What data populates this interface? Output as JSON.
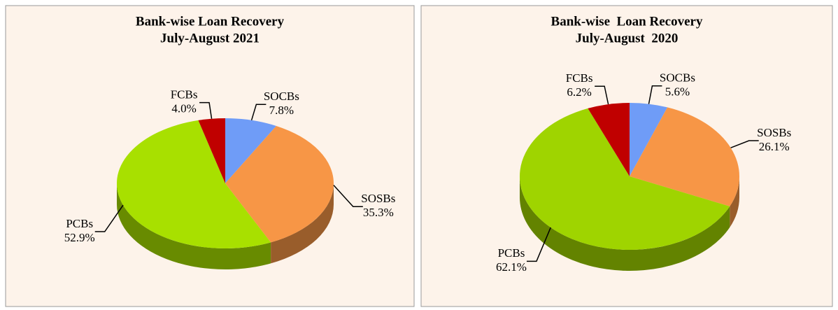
{
  "chart_data": [
    {
      "type": "pie",
      "title": "Bank-wise Loan Recovery",
      "subtitle": "July-August 2021",
      "labels": [
        "SOCBs",
        "SOSBs",
        "PCBs",
        "FCBs"
      ],
      "values": [
        7.8,
        35.3,
        52.9,
        4.0
      ],
      "value_labels": [
        "7.8%",
        "35.3%",
        "52.9%",
        "4.0%"
      ],
      "colors": [
        "#6f9cf7",
        "#f79646",
        "#a8e000",
        "#c00000"
      ]
    },
    {
      "type": "pie",
      "title": "Bank-wise  Loan Recovery",
      "subtitle": "July-August  2020",
      "labels": [
        "SOCBs",
        "SOSBs",
        "PCBs",
        "FCBs"
      ],
      "values": [
        5.6,
        26.1,
        62.1,
        6.2
      ],
      "value_labels": [
        "5.6%",
        "26.1%",
        "62.1%",
        "6.2%"
      ],
      "colors": [
        "#6f9cf7",
        "#f79646",
        "#9fd400",
        "#c00000"
      ]
    }
  ]
}
